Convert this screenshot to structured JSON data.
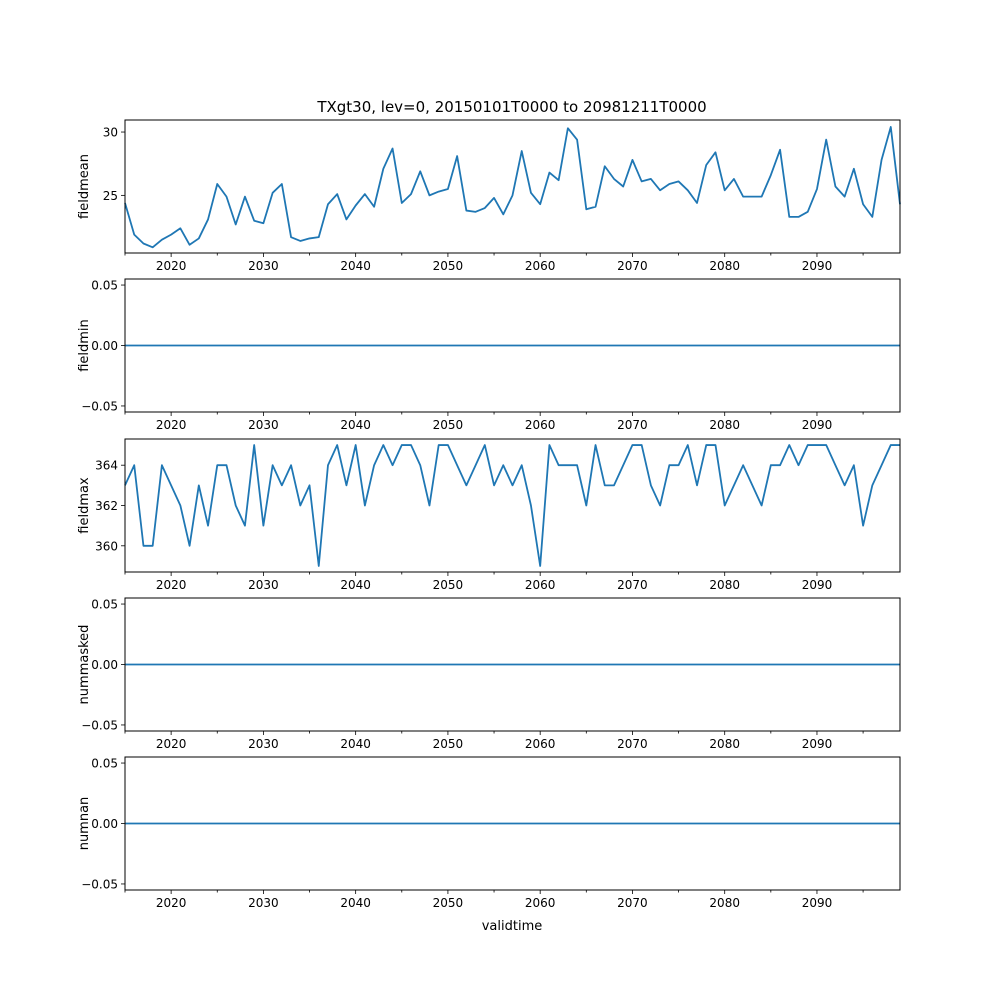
{
  "title": "TXgt30, lev=0, 20150101T0000 to 20981211T0000",
  "xlabel": "validtime",
  "colors": {
    "line": "#1f77b4",
    "axes": "#000000",
    "background": "#ffffff"
  },
  "chart_data": [
    {
      "type": "line",
      "ylabel": "fieldmean",
      "xlim": [
        2015,
        2099
      ],
      "ylim": [
        20.45,
        30.95
      ],
      "x_ticks": [
        2020,
        2030,
        2040,
        2050,
        2060,
        2070,
        2080,
        2090
      ],
      "x_tick_labels": [
        "2020",
        "2030",
        "2040",
        "2050",
        "2060",
        "2070",
        "2080",
        "2090"
      ],
      "y_ticks": [
        25,
        30
      ],
      "y_tick_labels": [
        "25",
        "30"
      ],
      "series": [
        {
          "name": "fieldmean",
          "x": [
            2015,
            2016,
            2017,
            2018,
            2019,
            2020,
            2021,
            2022,
            2023,
            2024,
            2025,
            2026,
            2027,
            2028,
            2029,
            2030,
            2031,
            2032,
            2033,
            2034,
            2035,
            2036,
            2037,
            2038,
            2039,
            2040,
            2041,
            2042,
            2043,
            2044,
            2045,
            2046,
            2047,
            2048,
            2049,
            2050,
            2051,
            2052,
            2053,
            2054,
            2055,
            2056,
            2057,
            2058,
            2059,
            2060,
            2061,
            2062,
            2063,
            2064,
            2065,
            2066,
            2067,
            2068,
            2069,
            2070,
            2071,
            2072,
            2073,
            2074,
            2075,
            2076,
            2077,
            2078,
            2079,
            2080,
            2081,
            2082,
            2083,
            2084,
            2085,
            2086,
            2087,
            2088,
            2089,
            2090,
            2091,
            2092,
            2093,
            2094,
            2095,
            2096,
            2097,
            2098,
            2099
          ],
          "values": [
            24.4,
            21.9,
            21.2,
            20.9,
            21.5,
            21.9,
            22.4,
            21.1,
            21.6,
            23.1,
            25.9,
            24.9,
            22.7,
            24.9,
            23.0,
            22.8,
            25.2,
            25.9,
            21.7,
            21.4,
            21.6,
            21.7,
            24.3,
            25.1,
            23.1,
            24.2,
            25.1,
            24.1,
            27.1,
            28.7,
            24.4,
            25.1,
            26.9,
            25.0,
            25.3,
            25.5,
            28.1,
            23.8,
            23.7,
            24.0,
            24.8,
            23.5,
            25.0,
            28.5,
            25.2,
            24.3,
            26.8,
            26.2,
            30.3,
            29.4,
            23.9,
            24.1,
            27.3,
            26.3,
            25.7,
            27.8,
            26.1,
            26.3,
            25.4,
            25.9,
            26.1,
            25.4,
            24.4,
            27.4,
            28.4,
            25.4,
            26.3,
            24.9,
            24.9,
            24.9,
            26.6,
            28.6,
            23.3,
            23.3,
            23.7,
            25.5,
            29.4,
            25.7,
            24.9,
            27.1,
            24.3,
            23.3,
            27.8,
            30.4,
            24.3
          ]
        }
      ]
    },
    {
      "type": "line",
      "ylabel": "fieldmin",
      "xlim": [
        2015,
        2099
      ],
      "ylim": [
        -0.055,
        0.055
      ],
      "x_ticks": [
        2020,
        2030,
        2040,
        2050,
        2060,
        2070,
        2080,
        2090
      ],
      "x_tick_labels": [
        "2020",
        "2030",
        "2040",
        "2050",
        "2060",
        "2070",
        "2080",
        "2090"
      ],
      "y_ticks": [
        -0.05,
        0.0,
        0.05
      ],
      "y_tick_labels": [
        "−0.05",
        "0.00",
        "0.05"
      ],
      "series": [
        {
          "name": "fieldmin",
          "x": [
            2015,
            2099
          ],
          "values": [
            0,
            0
          ]
        }
      ]
    },
    {
      "type": "line",
      "ylabel": "fieldmax",
      "xlim": [
        2015,
        2099
      ],
      "ylim": [
        358.7,
        365.3
      ],
      "x_ticks": [
        2020,
        2030,
        2040,
        2050,
        2060,
        2070,
        2080,
        2090
      ],
      "x_tick_labels": [
        "2020",
        "2030",
        "2040",
        "2050",
        "2060",
        "2070",
        "2080",
        "2090"
      ],
      "y_ticks": [
        360,
        362,
        364
      ],
      "y_tick_labels": [
        "360",
        "362",
        "364"
      ],
      "series": [
        {
          "name": "fieldmax",
          "x": [
            2015,
            2016,
            2017,
            2018,
            2019,
            2020,
            2021,
            2022,
            2023,
            2024,
            2025,
            2026,
            2027,
            2028,
            2029,
            2030,
            2031,
            2032,
            2033,
            2034,
            2035,
            2036,
            2037,
            2038,
            2039,
            2040,
            2041,
            2042,
            2043,
            2044,
            2045,
            2046,
            2047,
            2048,
            2049,
            2050,
            2051,
            2052,
            2053,
            2054,
            2055,
            2056,
            2057,
            2058,
            2059,
            2060,
            2061,
            2062,
            2063,
            2064,
            2065,
            2066,
            2067,
            2068,
            2069,
            2070,
            2071,
            2072,
            2073,
            2074,
            2075,
            2076,
            2077,
            2078,
            2079,
            2080,
            2081,
            2082,
            2083,
            2084,
            2085,
            2086,
            2087,
            2088,
            2089,
            2090,
            2091,
            2092,
            2093,
            2094,
            2095,
            2096,
            2097,
            2098,
            2099
          ],
          "values": [
            363,
            364,
            360,
            360,
            364,
            363,
            362,
            360,
            363,
            361,
            364,
            364,
            362,
            361,
            365,
            361,
            364,
            363,
            364,
            362,
            363,
            359,
            364,
            365,
            363,
            365,
            362,
            364,
            365,
            364,
            365,
            365,
            364,
            362,
            365,
            365,
            364,
            363,
            364,
            365,
            363,
            364,
            363,
            364,
            362,
            359,
            365,
            364,
            364,
            364,
            362,
            365,
            363,
            363,
            364,
            365,
            365,
            363,
            362,
            364,
            364,
            365,
            363,
            365,
            365,
            362,
            363,
            364,
            363,
            362,
            364,
            364,
            365,
            364,
            365,
            365,
            365,
            364,
            363,
            364,
            361,
            363,
            364,
            365,
            365
          ]
        }
      ]
    },
    {
      "type": "line",
      "ylabel": "nummasked",
      "xlim": [
        2015,
        2099
      ],
      "ylim": [
        -0.055,
        0.055
      ],
      "x_ticks": [
        2020,
        2030,
        2040,
        2050,
        2060,
        2070,
        2080,
        2090
      ],
      "x_tick_labels": [
        "2020",
        "2030",
        "2040",
        "2050",
        "2060",
        "2070",
        "2080",
        "2090"
      ],
      "y_ticks": [
        -0.05,
        0.0,
        0.05
      ],
      "y_tick_labels": [
        "−0.05",
        "0.00",
        "0.05"
      ],
      "series": [
        {
          "name": "nummasked",
          "x": [
            2015,
            2099
          ],
          "values": [
            0,
            0
          ]
        }
      ]
    },
    {
      "type": "line",
      "ylabel": "numnan",
      "xlim": [
        2015,
        2099
      ],
      "ylim": [
        -0.055,
        0.055
      ],
      "x_ticks": [
        2020,
        2030,
        2040,
        2050,
        2060,
        2070,
        2080,
        2090
      ],
      "x_tick_labels": [
        "2020",
        "2030",
        "2040",
        "2050",
        "2060",
        "2070",
        "2080",
        "2090"
      ],
      "y_ticks": [
        -0.05,
        0.0,
        0.05
      ],
      "y_tick_labels": [
        "−0.05",
        "0.00",
        "0.05"
      ],
      "series": [
        {
          "name": "numnan",
          "x": [
            2015,
            2099
          ],
          "values": [
            0,
            0
          ]
        }
      ]
    }
  ]
}
